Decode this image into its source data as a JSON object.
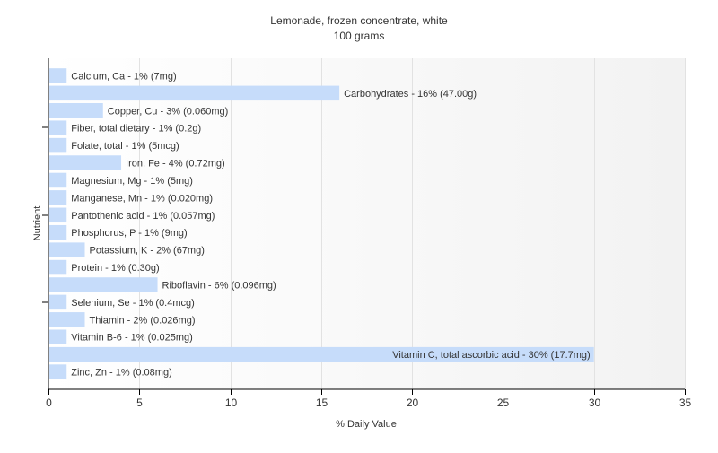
{
  "chart_data": {
    "type": "bar",
    "orientation": "horizontal",
    "title": "Lemonade, frozen concentrate, white",
    "subtitle": "100 grams",
    "xlabel": "% Daily Value",
    "ylabel": "Nutrient",
    "xlim": [
      0,
      35
    ],
    "x_ticks": [
      0,
      5,
      10,
      15,
      20,
      25,
      30,
      35
    ],
    "grid": true,
    "bar_color": "#c6dcfa",
    "categories": [
      "Calcium, Ca",
      "Carbohydrates",
      "Copper, Cu",
      "Fiber, total dietary",
      "Folate, total",
      "Iron, Fe",
      "Magnesium, Mg",
      "Manganese, Mn",
      "Pantothenic acid",
      "Phosphorus, P",
      "Potassium, K",
      "Protein",
      "Riboflavin",
      "Selenium, Se",
      "Thiamin",
      "Vitamin B-6",
      "Vitamin C, total ascorbic acid",
      "Zinc, Zn"
    ],
    "values": [
      1,
      16,
      3,
      1,
      1,
      4,
      1,
      1,
      1,
      1,
      2,
      1,
      6,
      1,
      2,
      1,
      30,
      1
    ],
    "amounts": [
      "7mg",
      "47.00g",
      "0.060mg",
      "0.2g",
      "5mcg",
      "0.72mg",
      "5mg",
      "0.020mg",
      "0.057mg",
      "9mg",
      "67mg",
      "0.30g",
      "0.096mg",
      "0.4mcg",
      "0.026mg",
      "0.025mg",
      "17.7mg",
      "0.08mg"
    ],
    "data_labels": [
      "Calcium, Ca - 1% (7mg)",
      "Carbohydrates - 16% (47.00g)",
      "Copper, Cu - 3% (0.060mg)",
      "Fiber, total dietary - 1% (0.2g)",
      "Folate, total - 1% (5mcg)",
      "Iron, Fe - 4% (0.72mg)",
      "Magnesium, Mg - 1% (5mg)",
      "Manganese, Mn - 1% (0.020mg)",
      "Pantothenic acid - 1% (0.057mg)",
      "Phosphorus, P - 1% (9mg)",
      "Potassium, K - 2% (67mg)",
      "Protein - 1% (0.30g)",
      "Riboflavin - 6% (0.096mg)",
      "Selenium, Se - 1% (0.4mcg)",
      "Thiamin - 2% (0.026mg)",
      "Vitamin B-6 - 1% (0.025mg)",
      "Vitamin C, total ascorbic acid - 30% (17.7mg)",
      "Zinc, Zn - 1% (0.08mg)"
    ]
  }
}
